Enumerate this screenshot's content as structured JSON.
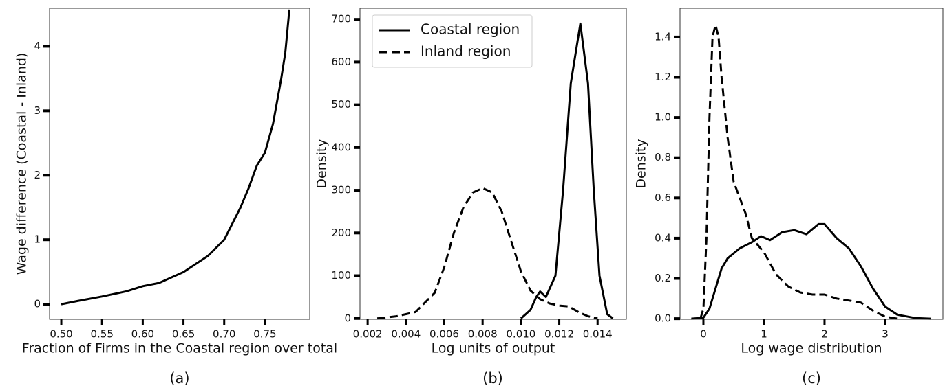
{
  "chart_data": [
    {
      "type": "line",
      "caption": "(a)",
      "xlabel": "Fraction of Firms in the Coastal region over total",
      "ylabel": "Wage difference (Coastal - Inland)",
      "xlim": [
        0.4856,
        0.805
      ],
      "ylim": [
        -0.233,
        4.59
      ],
      "xticks": [
        {
          "value": 0.5,
          "label": "0.50"
        },
        0.55,
        {
          "value": 0.6,
          "label": "0.60"
        },
        0.65,
        {
          "value": 0.7,
          "label": "0.70"
        },
        0.75
      ],
      "yticks": [
        0,
        1,
        2,
        3,
        4
      ],
      "series": [
        {
          "color": "#000000",
          "linestyle": "solid",
          "x": [
            0.5,
            0.52,
            0.55,
            0.58,
            0.6,
            0.62,
            0.65,
            0.68,
            0.7,
            0.72,
            0.73,
            0.74,
            0.75,
            0.76,
            0.77,
            0.775,
            0.78
          ],
          "values": [
            0.0,
            0.05,
            0.12,
            0.2,
            0.28,
            0.33,
            0.5,
            0.75,
            1.0,
            1.5,
            1.8,
            2.15,
            2.35,
            2.8,
            3.5,
            3.9,
            4.57
          ]
        }
      ]
    },
    {
      "type": "line",
      "caption": "(b)",
      "xlabel": "Log units of output",
      "ylabel": "Density",
      "xlim": [
        0.0016,
        0.0155
      ],
      "ylim": [
        -2,
        726
      ],
      "xticks": [
        0.002,
        0.004,
        0.006,
        0.008,
        {
          "value": 0.01,
          "label": "0.010"
        },
        0.012,
        0.014
      ],
      "yticks": [
        0,
        100,
        200,
        300,
        400,
        500,
        600,
        700
      ],
      "legend": "upper left",
      "series": [
        {
          "name": "Coastal region",
          "color": "#000000",
          "linestyle": "solid",
          "x": [
            0.01,
            0.0105,
            0.0108,
            0.011,
            0.0113,
            0.0118,
            0.0122,
            0.0126,
            0.0131,
            0.0135,
            0.0138,
            0.0141,
            0.0145,
            0.0148
          ],
          "values": [
            0,
            20,
            50,
            63,
            50,
            100,
            300,
            550,
            690,
            550,
            300,
            100,
            10,
            0
          ]
        },
        {
          "name": "Inland region",
          "color": "#000000",
          "linestyle": "dashed",
          "x": [
            0.0025,
            0.0035,
            0.0045,
            0.0055,
            0.006,
            0.0065,
            0.007,
            0.0075,
            0.008,
            0.0085,
            0.009,
            0.0095,
            0.01,
            0.0105,
            0.011,
            0.0115,
            0.012,
            0.0125,
            0.013,
            0.0135,
            0.014
          ],
          "values": [
            0,
            5,
            15,
            60,
            120,
            200,
            260,
            295,
            305,
            295,
            250,
            180,
            110,
            65,
            45,
            35,
            30,
            28,
            15,
            5,
            0
          ]
        }
      ]
    },
    {
      "type": "line",
      "caption": "(c)",
      "xlabel": "Log wage distribution",
      "ylabel": "Density",
      "xlim": [
        -0.386,
        3.955
      ],
      "ylim": [
        -0.003,
        1.543
      ],
      "xticks": [
        0,
        1,
        2,
        3
      ],
      "yticks": [
        {
          "value": 0,
          "label": "0.0"
        },
        0.2,
        0.4,
        0.6,
        0.8,
        {
          "value": 1,
          "label": "1.0"
        },
        1.2,
        1.4
      ],
      "series": [
        {
          "color": "#000000",
          "linestyle": "solid",
          "x": [
            -0.2,
            0,
            0.1,
            0.2,
            0.3,
            0.4,
            0.6,
            0.8,
            0.95,
            1.1,
            1.3,
            1.5,
            1.7,
            1.9,
            2.0,
            2.2,
            2.4,
            2.6,
            2.8,
            3.0,
            3.2,
            3.5,
            3.75
          ],
          "values": [
            0,
            0.005,
            0.05,
            0.15,
            0.25,
            0.3,
            0.35,
            0.38,
            0.41,
            0.39,
            0.43,
            0.44,
            0.42,
            0.47,
            0.47,
            0.4,
            0.35,
            0.26,
            0.15,
            0.06,
            0.02,
            0.003,
            0
          ]
        },
        {
          "color": "#000000",
          "linestyle": "dashed",
          "x": [
            -0.05,
            0,
            0.05,
            0.1,
            0.15,
            0.2,
            0.25,
            0.3,
            0.4,
            0.5,
            0.6,
            0.7,
            0.8,
            1.0,
            1.2,
            1.4,
            1.6,
            1.8,
            2.0,
            2.2,
            2.4,
            2.6,
            2.8,
            3.0,
            3.2
          ],
          "values": [
            0,
            0.05,
            0.4,
            1.0,
            1.4,
            1.46,
            1.4,
            1.2,
            0.9,
            0.68,
            0.6,
            0.52,
            0.4,
            0.33,
            0.22,
            0.16,
            0.13,
            0.12,
            0.12,
            0.1,
            0.09,
            0.08,
            0.04,
            0.01,
            0
          ]
        }
      ]
    }
  ]
}
